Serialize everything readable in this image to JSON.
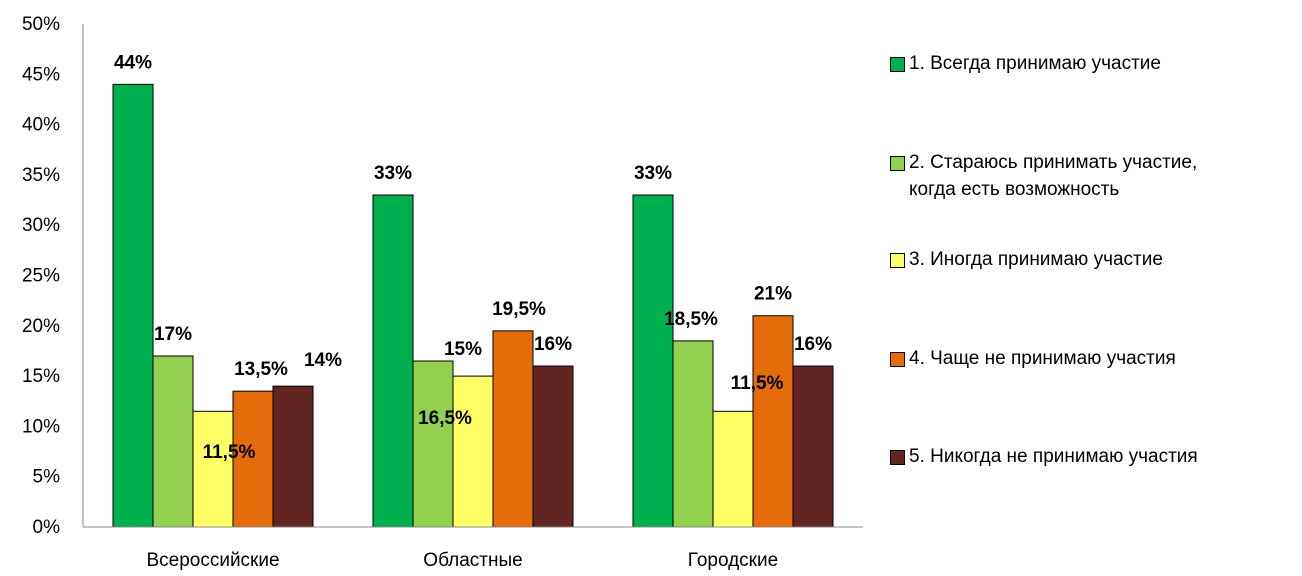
{
  "chart_data": {
    "type": "bar",
    "categories": [
      "Всероссийские",
      "Областные",
      "Городские"
    ],
    "series": [
      {
        "name": "1. Всегда принимаю участие",
        "values": [
          44,
          33,
          33
        ],
        "labels": [
          "44%",
          "33%",
          "33%"
        ],
        "color": "#00b050"
      },
      {
        "name": "2. Стараюсь принимать участие, когда есть возможность",
        "name_lines": [
          "2. Стараюсь принимать участие,",
          "когда есть возможность"
        ],
        "values": [
          17,
          16.5,
          18.5
        ],
        "labels": [
          "17%",
          "16,5%",
          "18,5%"
        ],
        "color": "#92d050"
      },
      {
        "name": "3. Иногда принимаю участие",
        "values": [
          11.5,
          15,
          11.5
        ],
        "labels": [
          "11,5%",
          "15%",
          "11,5%"
        ],
        "color": "#ffff66"
      },
      {
        "name": "4. Чаще не принимаю участия",
        "values": [
          13.5,
          19.5,
          21
        ],
        "labels": [
          "13,5%",
          "19,5%",
          "21%"
        ],
        "color": "#e46c0a"
      },
      {
        "name": "5. Никогда не принимаю участия",
        "values": [
          14,
          16,
          16
        ],
        "labels": [
          "14%",
          "16%",
          "16%"
        ],
        "color": "#632523"
      }
    ],
    "y_ticks": [
      "0%",
      "5%",
      "10%",
      "15%",
      "20%",
      "25%",
      "30%",
      "35%",
      "40%",
      "45%",
      "50%"
    ],
    "ylim": [
      0,
      50
    ],
    "title": "",
    "xlabel": "",
    "ylabel": "",
    "grid": false,
    "legend_position": "right"
  }
}
